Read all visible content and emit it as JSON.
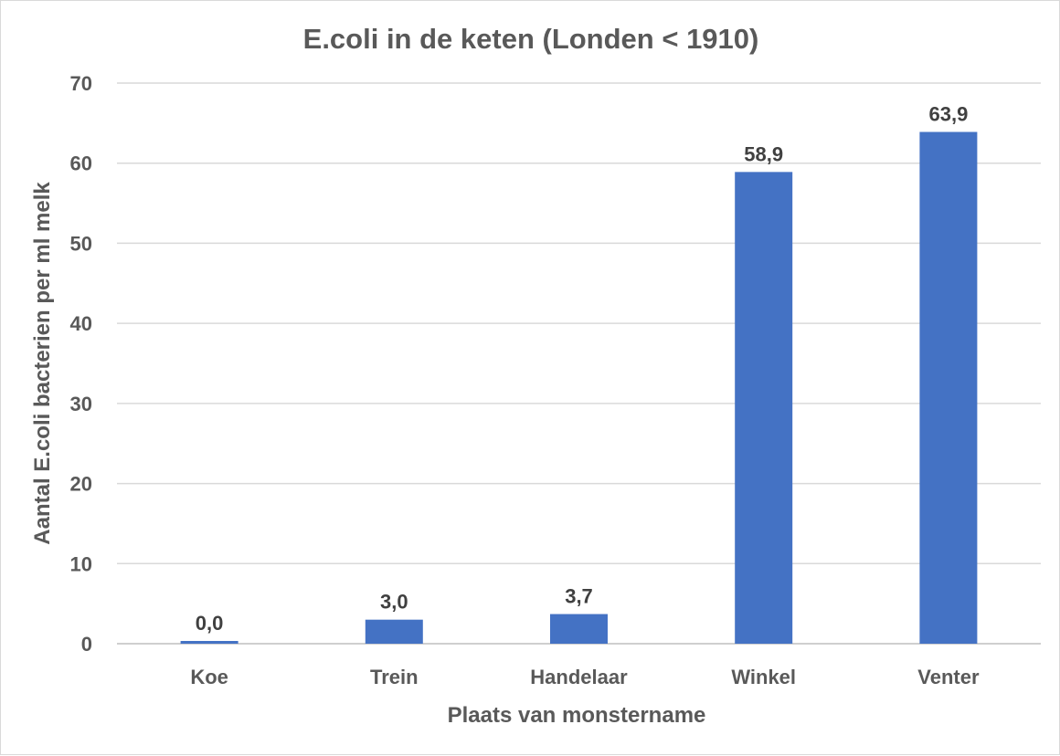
{
  "chart_data": {
    "type": "bar",
    "title": "E.coli in de keten (Londen < 1910)",
    "xlabel": "Plaats van monstername",
    "ylabel": "Aantal E.coli bacterien per ml melk",
    "categories": [
      "Koe",
      "Trein",
      "Handelaar",
      "Winkel",
      "Venter"
    ],
    "values": [
      0.0,
      3.0,
      3.7,
      58.9,
      63.9
    ],
    "data_labels": [
      "0,0",
      "3,0",
      "3,7",
      "58,9",
      "63,9"
    ],
    "ylim": [
      0,
      70
    ],
    "yticks": [
      0,
      10,
      20,
      30,
      40,
      50,
      60,
      70
    ],
    "grid": true,
    "legend": "none",
    "bar_color": "#4472c4"
  }
}
